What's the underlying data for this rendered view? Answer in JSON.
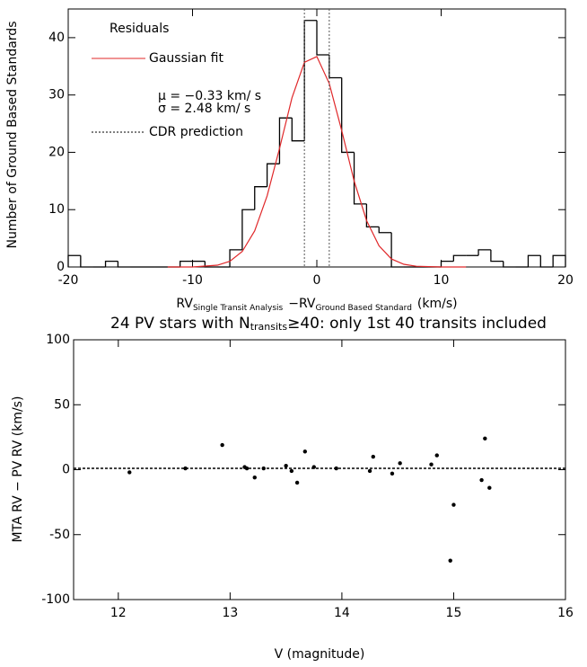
{
  "chart_data": [
    {
      "type": "histogram",
      "xlabel": [
        "RV",
        "Single Transit Analysis",
        "−RV",
        "Ground Based Standard",
        "(km/s)"
      ],
      "ylabel": "Number of Ground Based Standards",
      "xlim": [
        -20,
        20
      ],
      "xticks": [
        -20,
        -10,
        0,
        10,
        20
      ],
      "ylim": [
        0,
        45
      ],
      "yticks": [
        0,
        10,
        20,
        30,
        40
      ],
      "bins": [
        -20,
        -19,
        -18,
        -17,
        -16,
        -15,
        -14,
        -13,
        -12,
        -11,
        -10,
        -9,
        -8,
        -7,
        -6,
        -5,
        -4,
        -3,
        -2,
        -1,
        0,
        1,
        2,
        3,
        4,
        5,
        6,
        7,
        8,
        9,
        10,
        11,
        12,
        13,
        14,
        15,
        16,
        17,
        18,
        19,
        20
      ],
      "series": [
        {
          "name": "Residuals",
          "color": "#000000",
          "values": [
            2,
            0,
            0,
            1,
            0,
            0,
            0,
            0,
            0,
            1,
            1,
            0,
            0,
            3,
            10,
            14,
            18,
            26,
            22,
            43,
            37,
            33,
            20,
            11,
            7,
            6,
            0,
            0,
            0,
            0,
            1,
            2,
            2,
            3,
            1,
            0,
            0,
            2,
            0,
            2
          ]
        },
        {
          "name": "Gaussian fit",
          "color": "#e0282a",
          "x": [
            -12,
            -10,
            -8,
            -7,
            -6,
            -5,
            -4,
            -3,
            -2,
            -1,
            0,
            1,
            2,
            3,
            4,
            5,
            6,
            7,
            8,
            10,
            12
          ],
          "values": [
            0,
            0,
            0.31,
            0.99,
            2.7,
            6.3,
            12.4,
            20.7,
            29.5,
            35.7,
            36.7,
            32.0,
            23.8,
            15.0,
            8.1,
            3.7,
            1.4,
            0.47,
            0.13,
            0,
            0
          ]
        },
        {
          "name": "CDR prediction",
          "color": "#555555",
          "x": [
            -1,
            1
          ]
        }
      ],
      "annotations": [
        "μ =  −0.33 km/ s",
        "σ =  2.48  km/ s"
      ]
    },
    {
      "type": "scatter",
      "title": [
        "24 PV stars with N",
        "transits",
        "≥40: only 1st 40 transits included"
      ],
      "xlabel": "V (magnitude)",
      "ylabel": "MTA RV − PV RV (km/s)",
      "xlim": [
        11.6,
        16
      ],
      "xticks": [
        12,
        13,
        14,
        15,
        16
      ],
      "ylim": [
        -100,
        100
      ],
      "yticks": [
        -100,
        -50,
        0,
        50,
        100
      ],
      "color": "#000000",
      "hline": 1,
      "x": [
        12.1,
        12.6,
        12.93,
        13.13,
        13.15,
        13.22,
        13.3,
        13.5,
        13.55,
        13.6,
        13.67,
        13.75,
        13.95,
        14.25,
        14.28,
        14.45,
        14.52,
        14.8,
        14.85,
        14.97,
        15.0,
        15.25,
        15.28,
        15.32
      ],
      "values": [
        -2,
        1,
        19,
        2,
        1,
        -6,
        1,
        3,
        -1,
        -10,
        14,
        2,
        1,
        -1,
        10,
        -3,
        5,
        4,
        11,
        -70,
        -27,
        -8,
        24,
        -14
      ]
    }
  ]
}
